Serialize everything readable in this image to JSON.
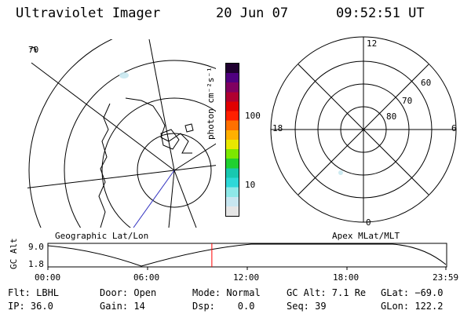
{
  "header": {
    "instrument": "Ultraviolet Imager",
    "date": "20 Jun 07",
    "time": "09:52:51 UT"
  },
  "colorbar": {
    "label": "photon cm⁻²s⁻¹",
    "ticks": [
      "100",
      "10"
    ],
    "colors": [
      "#e6e6e6",
      "#c8e6f0",
      "#8ee8e8",
      "#2ed8d8",
      "#18c8b0",
      "#20d030",
      "#7ce800",
      "#e8e800",
      "#ffb000",
      "#ff7000",
      "#ff2000",
      "#e00000",
      "#b00030",
      "#800060",
      "#500080",
      "#200030"
    ]
  },
  "left_map": {
    "caption": "Geographic Lat/Lon",
    "edge_label": "70"
  },
  "right_map": {
    "caption": "Apex MLat/MLT",
    "mlt_labels": {
      "top": "12",
      "left": "18",
      "right": "6",
      "bottom": "0"
    },
    "lat_labels": [
      "60",
      "70",
      "80"
    ]
  },
  "timeline": {
    "ylabel": "GC Alt",
    "y_ticks": [
      "9.0",
      "1.8"
    ],
    "x_ticks": [
      "00:00",
      "06:00",
      "12:00",
      "18:00",
      "23:59"
    ],
    "current_time_fraction": 0.412,
    "marker_color": "#ff0000"
  },
  "status": {
    "filter": "Flt: LBHL",
    "door": "Door: Open",
    "mode": "Mode: Normal",
    "gc_alt": "GC Alt: 7.1 Re",
    "glat": "GLat: −69.0",
    "ip": "IP: 36.0",
    "gain": "Gain: 14",
    "dsp": "Dsp:    0.0",
    "seq": "Seq: 39",
    "glon": "GLon: 122.2"
  }
}
